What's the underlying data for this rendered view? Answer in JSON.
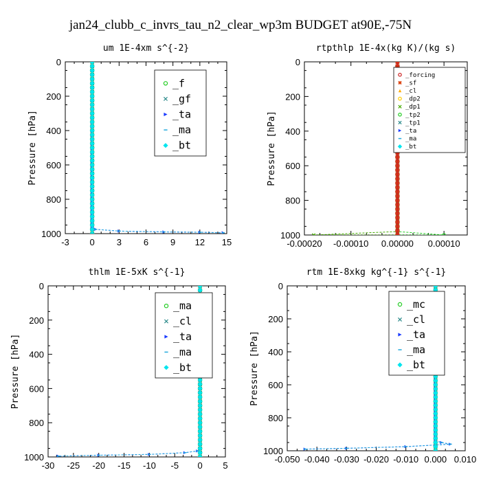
{
  "suptitle": "jan24_clubb_c_invrs_tau_n2_clear_wp3m  BUDGET at90E,-75N",
  "chart_data": [
    {
      "type": "line",
      "title": "um  1E-4xm s^{-2}",
      "ylabel": "Pressure [hPa]",
      "xlim": [
        -3,
        15
      ],
      "ylim": [
        1000,
        0
      ],
      "xticks": [
        "-3",
        "0",
        "3",
        "6",
        "9",
        "12",
        "15"
      ],
      "xtick_values": [
        -3,
        0,
        3,
        6,
        9,
        12,
        15
      ],
      "yticks": [
        "0",
        "200",
        "400",
        "600",
        "800",
        "1000"
      ],
      "legend_style": "big",
      "series": [
        {
          "name": "_f",
          "color": "#22cc22",
          "marker": "circle",
          "x": [
            0,
            0
          ],
          "y": [
            0,
            1000
          ]
        },
        {
          "name": "_gf",
          "color": "#2a8a8a",
          "marker": "cross",
          "x": [
            0,
            0
          ],
          "y": [
            0,
            1000
          ]
        },
        {
          "name": "_ta",
          "color": "#1a3aff",
          "marker": "arrow",
          "x": [
            0,
            0,
            0.4,
            3,
            8,
            12,
            14.6
          ],
          "y": [
            0,
            960,
            975,
            985,
            990,
            992,
            995
          ]
        },
        {
          "name": "_ma",
          "color": "#22aadd",
          "marker": "dash",
          "x": [
            0,
            0,
            0.4,
            3,
            8,
            12,
            14.6
          ],
          "y": [
            0,
            960,
            975,
            985,
            990,
            992,
            995
          ]
        },
        {
          "name": "_bt",
          "color": "#00e5ee",
          "marker": "diamond",
          "x": [
            0,
            0
          ],
          "y": [
            0,
            1000
          ]
        }
      ]
    },
    {
      "type": "line",
      "title": "rtpthlp  1E-4x(kg K)/(kg s)",
      "ylabel": "Pressure [hPa]",
      "xlim": [
        -0.0002,
        0.00015
      ],
      "ylim": [
        1000,
        0
      ],
      "xticks": [
        "-0.00020",
        "-0.00010",
        "0.00000",
        "0.00010"
      ],
      "xtick_values": [
        -0.0002,
        -0.0001,
        0,
        0.0001
      ],
      "yticks": [
        "0",
        "200",
        "400",
        "600",
        "800",
        "1000"
      ],
      "legend_style": "small",
      "series": [
        {
          "name": "_forcing",
          "color": "#cc2222",
          "marker": "circle",
          "x": [
            0,
            0
          ],
          "y": [
            0,
            1000
          ]
        },
        {
          "name": "_sf",
          "color": "#dd4411",
          "marker": "star",
          "x": [
            0,
            0
          ],
          "y": [
            0,
            1000
          ]
        },
        {
          "name": "_cl",
          "color": "#ffaa00",
          "marker": "triangle",
          "x": [
            0,
            0
          ],
          "y": [
            0,
            1000
          ]
        },
        {
          "name": "_dp2",
          "color": "#ffcc00",
          "marker": "circle",
          "x": [
            0,
            0
          ],
          "y": [
            0,
            1000
          ]
        },
        {
          "name": "_dp1",
          "color": "#44aa00",
          "marker": "cross",
          "x": [
            0,
            0,
            -0.00018,
            0
          ],
          "y": [
            0,
            980,
            1000,
            1000
          ]
        },
        {
          "name": "_tp2",
          "color": "#22cc22",
          "marker": "circle",
          "x": [
            0,
            0,
            0.0001,
            0
          ],
          "y": [
            0,
            980,
            1000,
            1000
          ]
        },
        {
          "name": "_tp1",
          "color": "#2a8a8a",
          "marker": "cross",
          "x": [
            0,
            0
          ],
          "y": [
            0,
            1000
          ]
        },
        {
          "name": "_ta",
          "color": "#1a3aff",
          "marker": "arrow",
          "x": [
            0,
            0
          ],
          "y": [
            0,
            1000
          ]
        },
        {
          "name": "_ma",
          "color": "#22aadd",
          "marker": "dash",
          "x": [
            0,
            0
          ],
          "y": [
            0,
            1000
          ]
        },
        {
          "name": "_bt",
          "color": "#00e5ee",
          "marker": "diamond",
          "x": [
            0,
            0
          ],
          "y": [
            0,
            1000
          ]
        }
      ]
    },
    {
      "type": "line",
      "title": "thlm  1E-5xK s^{-1}",
      "ylabel": "Pressure [hPa]",
      "xlim": [
        -30,
        5
      ],
      "ylim": [
        1000,
        0
      ],
      "xticks": [
        "-30",
        "-25",
        "-20",
        "-15",
        "-10",
        "-5",
        "0",
        "5"
      ],
      "xtick_values": [
        -30,
        -25,
        -20,
        -15,
        -10,
        -5,
        0,
        5
      ],
      "yticks": [
        "0",
        "200",
        "400",
        "600",
        "800",
        "1000"
      ],
      "legend_style": "big",
      "series": [
        {
          "name": "_ma",
          "color": "#22cc22",
          "marker": "circle",
          "x": [
            0,
            0
          ],
          "y": [
            0,
            1000
          ]
        },
        {
          "name": "_cl",
          "color": "#2a8a8a",
          "marker": "cross",
          "x": [
            0,
            0
          ],
          "y": [
            0,
            1000
          ]
        },
        {
          "name": "_ta",
          "color": "#1a3aff",
          "marker": "arrow",
          "x": [
            0,
            0,
            -0.5,
            -3,
            -10,
            -20,
            -28
          ],
          "y": [
            0,
            950,
            965,
            975,
            985,
            990,
            995
          ]
        },
        {
          "name": "_ma",
          "color": "#22aadd",
          "marker": "dash",
          "x": [
            0,
            0,
            -0.5,
            -3,
            -10,
            -20,
            -28
          ],
          "y": [
            0,
            950,
            965,
            975,
            985,
            990,
            995
          ]
        },
        {
          "name": "_bt",
          "color": "#00e5ee",
          "marker": "diamond",
          "x": [
            0,
            0
          ],
          "y": [
            0,
            1000
          ]
        }
      ]
    },
    {
      "type": "line",
      "title": "rtm  1E-8xkg kg^{-1} s^{-1}",
      "ylabel": "Pressure [hPa]",
      "xlim": [
        -0.05,
        0.01
      ],
      "ylim": [
        1000,
        0
      ],
      "xticks": [
        "-0.050",
        "-0.040",
        "-0.030",
        "-0.020",
        "-0.010",
        "0.000",
        "0.010"
      ],
      "xtick_values": [
        -0.05,
        -0.04,
        -0.03,
        -0.02,
        -0.01,
        0,
        0.01
      ],
      "yticks": [
        "0",
        "200",
        "400",
        "600",
        "800",
        "1000"
      ],
      "legend_style": "big",
      "series": [
        {
          "name": "_mc",
          "color": "#22cc22",
          "marker": "circle",
          "x": [
            0,
            0
          ],
          "y": [
            0,
            1000
          ]
        },
        {
          "name": "_cl",
          "color": "#2a8a8a",
          "marker": "cross",
          "x": [
            0,
            0
          ],
          "y": [
            0,
            1000
          ]
        },
        {
          "name": "_ta",
          "color": "#1a3aff",
          "marker": "arrow",
          "x": [
            0,
            0,
            0.002,
            0.005,
            -0.01,
            -0.03,
            -0.044
          ],
          "y": [
            0,
            940,
            950,
            960,
            975,
            985,
            990
          ]
        },
        {
          "name": "_ma",
          "color": "#22aadd",
          "marker": "dash",
          "x": [
            0,
            0,
            0.002,
            0.005,
            -0.01,
            -0.03,
            -0.044
          ],
          "y": [
            0,
            940,
            950,
            960,
            975,
            985,
            990
          ]
        },
        {
          "name": "_bt",
          "color": "#00e5ee",
          "marker": "diamond",
          "x": [
            0,
            0
          ],
          "y": [
            0,
            1000
          ]
        }
      ]
    }
  ]
}
